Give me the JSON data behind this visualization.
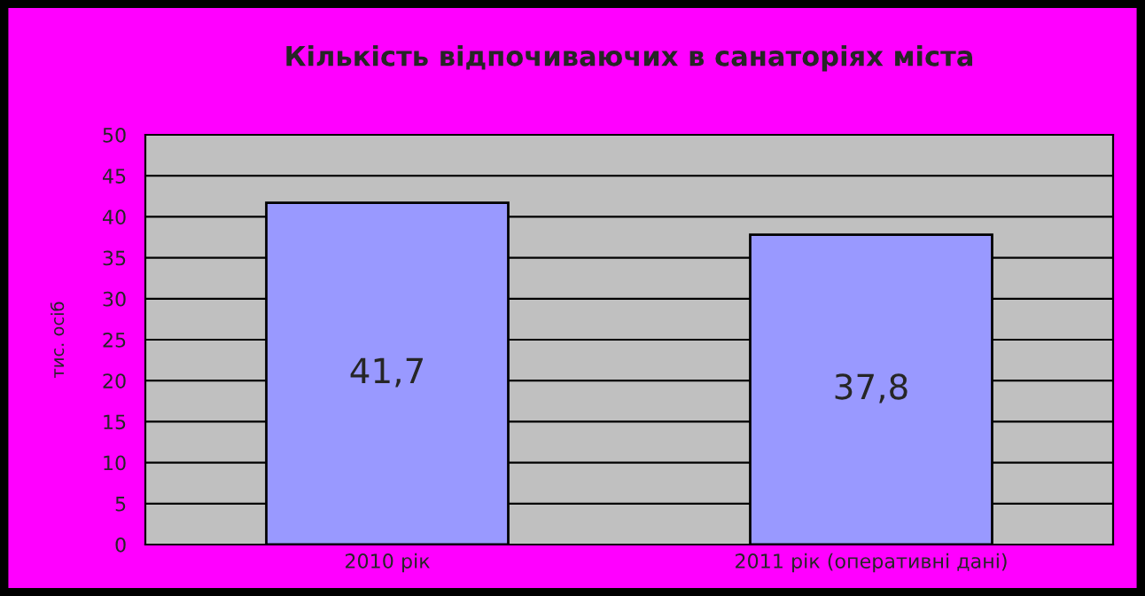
{
  "chart_data": {
    "type": "bar",
    "title": "Кількість відпочиваючих в санаторіях міста",
    "ylabel": "тис. осіб",
    "categories": [
      "2010 рік",
      "2011 рік (оперативні дані)"
    ],
    "values": [
      41.7,
      37.8
    ],
    "value_labels": [
      "41,7",
      "37,8"
    ],
    "color": "#9999ff",
    "ylim": [
      0,
      50
    ],
    "yticks": [
      0,
      5,
      10,
      15,
      20,
      25,
      30,
      35,
      40,
      45,
      50
    ],
    "grid": "y"
  }
}
